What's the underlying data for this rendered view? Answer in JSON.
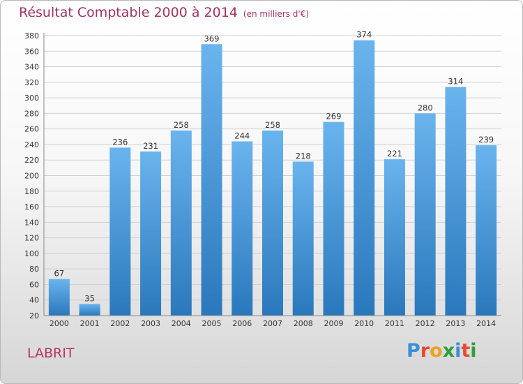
{
  "header": {
    "title": "Résultat Comptable 2000 à 2014",
    "unit_note": "(en milliers d'€)"
  },
  "footer": {
    "place": "LABRIT",
    "logo_text": "Proxiti",
    "logo_colors": [
      "#3a8ed6",
      "#e84a2e",
      "#f0a020",
      "#2aa040",
      "#3a8ed6",
      "#e84a2e",
      "#2aa040"
    ]
  },
  "colors": {
    "bar_light": "#6ab4ee",
    "bar_dark": "#2a78bc",
    "title": "#a0345c",
    "grid": "#d0d0d0",
    "axis_text": "#333333"
  },
  "chart_data": {
    "type": "bar",
    "categories": [
      "2000",
      "2001",
      "2002",
      "2003",
      "2004",
      "2005",
      "2006",
      "2007",
      "2008",
      "2009",
      "2010",
      "2011",
      "2012",
      "2013",
      "2014"
    ],
    "values": [
      67,
      35,
      236,
      231,
      258,
      369,
      244,
      258,
      218,
      269,
      374,
      221,
      280,
      314,
      239
    ],
    "ylim": [
      20,
      380
    ],
    "yticks": [
      20,
      40,
      60,
      80,
      100,
      120,
      140,
      160,
      180,
      200,
      220,
      240,
      260,
      280,
      300,
      320,
      340,
      360,
      380
    ],
    "grid": true
  }
}
